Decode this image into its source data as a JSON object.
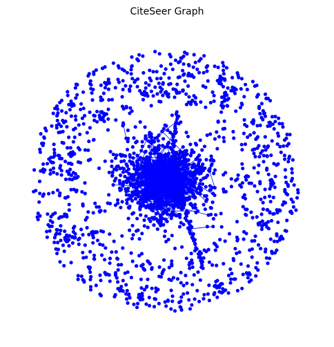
{
  "title": "CiteSeer Graph"
}
